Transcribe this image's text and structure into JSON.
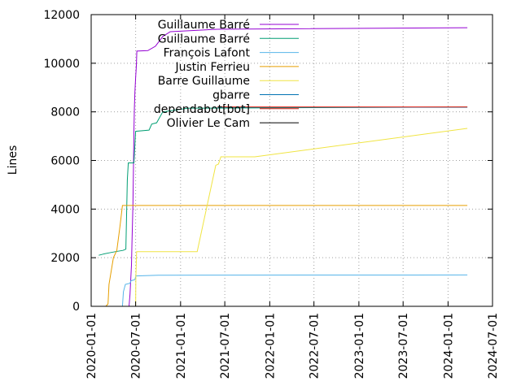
{
  "chart_data": {
    "type": "line",
    "ylabel": "Lines",
    "xlabel": "",
    "ylim": [
      0,
      12000
    ],
    "xlim": [
      "2020-01-01",
      "2024-07-01"
    ],
    "yticks": [
      0,
      2000,
      4000,
      6000,
      8000,
      10000,
      12000
    ],
    "xticks": [
      "2020-01-01",
      "2020-07-01",
      "2021-01-01",
      "2021-07-01",
      "2022-01-01",
      "2022-07-01",
      "2023-01-01",
      "2023-07-01",
      "2024-01-01",
      "2024-07-01"
    ],
    "grid": true,
    "legend": "top-center",
    "series": [
      {
        "name": "Guillaume Barré",
        "color": "#9400d3",
        "points": [
          [
            "2020-06-04",
            0
          ],
          [
            "2020-06-08",
            500
          ],
          [
            "2020-06-10",
            900
          ],
          [
            "2020-06-14",
            1700
          ],
          [
            "2020-06-16",
            2600
          ],
          [
            "2020-06-20",
            4200
          ],
          [
            "2020-06-22",
            5600
          ],
          [
            "2020-06-24",
            7200
          ],
          [
            "2020-06-26",
            8200
          ],
          [
            "2020-06-28",
            8800
          ],
          [
            "2020-07-01",
            9400
          ],
          [
            "2020-07-04",
            9900
          ],
          [
            "2020-07-06",
            10500
          ],
          [
            "2020-08-20",
            10520
          ],
          [
            "2020-09-20",
            10700
          ],
          [
            "2020-10-20",
            11100
          ],
          [
            "2020-11-20",
            11300
          ],
          [
            "2021-06-01",
            11400
          ],
          [
            "2024-03-20",
            11460
          ]
        ]
      },
      {
        "name": "Guillaume Barré",
        "color": "#009e73",
        "points": [
          [
            "2020-02-01",
            2100
          ],
          [
            "2020-02-20",
            2150
          ],
          [
            "2020-03-15",
            2200
          ],
          [
            "2020-04-10",
            2250
          ],
          [
            "2020-05-10",
            2300
          ],
          [
            "2020-05-22",
            2350
          ],
          [
            "2020-05-28",
            5200
          ],
          [
            "2020-06-01",
            5900
          ],
          [
            "2020-06-24",
            5900
          ],
          [
            "2020-07-01",
            7200
          ],
          [
            "2020-08-25",
            7250
          ],
          [
            "2020-09-05",
            7500
          ],
          [
            "2020-09-25",
            7550
          ],
          [
            "2020-10-20",
            8000
          ],
          [
            "2021-02-01",
            8150
          ],
          [
            "2024-03-20",
            8200
          ]
        ]
      },
      {
        "name": "François Lafont",
        "color": "#56b4e9",
        "points": [
          [
            "2020-04-20",
            0
          ],
          [
            "2020-05-08",
            0
          ],
          [
            "2020-05-12",
            600
          ],
          [
            "2020-05-20",
            900
          ],
          [
            "2020-06-08",
            950
          ],
          [
            "2020-06-12",
            1050
          ],
          [
            "2020-06-28",
            1100
          ],
          [
            "2020-07-02",
            1250
          ],
          [
            "2020-10-01",
            1280
          ],
          [
            "2024-03-20",
            1290
          ]
        ]
      },
      {
        "name": "Justin Ferrieu",
        "color": "#e69f00",
        "points": [
          [
            "2020-03-01",
            0
          ],
          [
            "2020-03-10",
            100
          ],
          [
            "2020-03-14",
            900
          ],
          [
            "2020-04-01",
            2000
          ],
          [
            "2020-04-15",
            2300
          ],
          [
            "2020-04-28",
            3300
          ],
          [
            "2020-05-08",
            4150
          ],
          [
            "2024-03-20",
            4150
          ]
        ]
      },
      {
        "name": "Barre Guillaume",
        "color": "#f0e442",
        "points": [
          [
            "2020-07-01",
            0
          ],
          [
            "2020-07-02",
            1200
          ],
          [
            "2020-07-05",
            2250
          ],
          [
            "2021-03-10",
            2250
          ],
          [
            "2021-05-25",
            5800
          ],
          [
            "2021-06-05",
            5850
          ],
          [
            "2021-06-15",
            6150
          ],
          [
            "2021-11-01",
            6150
          ],
          [
            "2024-03-20",
            7320
          ]
        ]
      },
      {
        "name": "gbarre",
        "color": "#0072b2",
        "points": [
          [
            "2021-06-01",
            8190
          ],
          [
            "2024-03-20",
            8190
          ]
        ]
      },
      {
        "name": "dependabot[bot]",
        "color": "#e51e10",
        "points": [
          [
            "2021-06-01",
            8200
          ],
          [
            "2024-03-20",
            8200
          ]
        ]
      },
      {
        "name": "Olivier Le Cam",
        "color": "#000000",
        "points": []
      }
    ]
  }
}
